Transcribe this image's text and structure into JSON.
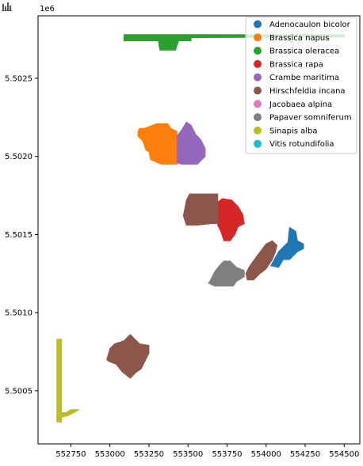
{
  "toolbar": {
    "menu_icon": "bar-chart-icon"
  },
  "chart_data": {
    "type": "scatter",
    "title": "",
    "xlabel": "",
    "ylabel": "",
    "offset_label": "1e6",
    "xlim": [
      552540,
      554600
    ],
    "ylim": [
      5500160,
      5502900
    ],
    "x_ticks": [
      552750,
      553000,
      553250,
      553500,
      553750,
      554000,
      554250,
      554500
    ],
    "y_ticks": [
      5500500,
      5501000,
      5501500,
      5502000,
      5502500
    ],
    "x_tick_labels": [
      "552750",
      "553000",
      "553250",
      "553500",
      "553750",
      "554000",
      "554250",
      "554500"
    ],
    "y_tick_labels": [
      "5.5005",
      "5.5010",
      "5.5015",
      "5.5020",
      "5.5025"
    ],
    "grid": false,
    "legend_position": "top-right",
    "series": [
      {
        "name": "Adenocaulon bicolor",
        "color": "#1f77b4",
        "polygon": [
          [
            554030,
            5501300
          ],
          [
            554080,
            5501390
          ],
          [
            554140,
            5501450
          ],
          [
            554150,
            5501545
          ],
          [
            554190,
            5501520
          ],
          [
            554200,
            5501460
          ],
          [
            554240,
            5501440
          ],
          [
            554240,
            5501410
          ],
          [
            554200,
            5501390
          ],
          [
            554150,
            5501340
          ],
          [
            554110,
            5501340
          ],
          [
            554080,
            5501290
          ]
        ]
      },
      {
        "name": "Brassica napus",
        "color": "#ff7f0e",
        "polygon": [
          [
            553180,
            5502130
          ],
          [
            553210,
            5502100
          ],
          [
            553230,
            5502040
          ],
          [
            553250,
            5502030
          ],
          [
            553260,
            5501980
          ],
          [
            553330,
            5501950
          ],
          [
            553430,
            5501950
          ],
          [
            553430,
            5502160
          ],
          [
            553390,
            5502180
          ],
          [
            553370,
            5502210
          ],
          [
            553300,
            5502210
          ],
          [
            553220,
            5502180
          ],
          [
            553190,
            5502180
          ],
          [
            553180,
            5502160
          ]
        ]
      },
      {
        "name": "Brassica oleracea",
        "color": "#2ca02c",
        "polygon": [
          [
            553090,
            5502780
          ],
          [
            554500,
            5502780
          ],
          [
            554500,
            5502765
          ],
          [
            553520,
            5502760
          ],
          [
            553520,
            5502740
          ],
          [
            553440,
            5502740
          ],
          [
            553420,
            5502680
          ],
          [
            553320,
            5502680
          ],
          [
            553310,
            5502740
          ],
          [
            553090,
            5502740
          ]
        ]
      },
      {
        "name": "Brassica rapa",
        "color": "#d62728",
        "polygon": [
          [
            553690,
            5501620
          ],
          [
            553680,
            5501700
          ],
          [
            553720,
            5501730
          ],
          [
            553780,
            5501720
          ],
          [
            553820,
            5501680
          ],
          [
            553850,
            5501630
          ],
          [
            553860,
            5501570
          ],
          [
            553820,
            5501550
          ],
          [
            553800,
            5501500
          ],
          [
            553770,
            5501460
          ],
          [
            553730,
            5501460
          ],
          [
            553710,
            5501520
          ],
          [
            553690,
            5501560
          ]
        ]
      },
      {
        "name": "Crambe maritima",
        "color": "#9467bd",
        "polygon": [
          [
            553430,
            5502130
          ],
          [
            553460,
            5502170
          ],
          [
            553490,
            5502220
          ],
          [
            553520,
            5502200
          ],
          [
            553550,
            5502140
          ],
          [
            553580,
            5502110
          ],
          [
            553610,
            5502050
          ],
          [
            553610,
            5502000
          ],
          [
            553590,
            5501980
          ],
          [
            553560,
            5501950
          ],
          [
            553500,
            5501950
          ],
          [
            553460,
            5501950
          ],
          [
            553430,
            5501960
          ]
        ]
      },
      {
        "name": "Hirschfeldia incana",
        "color": "#8c564b",
        "polygon": [
          [
            553480,
            5501670
          ],
          [
            553490,
            5501720
          ],
          [
            553510,
            5501760
          ],
          [
            553690,
            5501760
          ],
          [
            553690,
            5501570
          ],
          [
            553650,
            5501570
          ],
          [
            553560,
            5501560
          ],
          [
            553490,
            5501560
          ],
          [
            553470,
            5501620
          ]
        ]
      },
      {
        "name": "Jacobaea alpina",
        "color": "#e377c2",
        "polygon": []
      },
      {
        "name": "Papaver somniferum",
        "color": "#7f7f7f",
        "polygon": [
          [
            553640,
            5501200
          ],
          [
            553670,
            5501260
          ],
          [
            553700,
            5501300
          ],
          [
            553730,
            5501330
          ],
          [
            553770,
            5501330
          ],
          [
            553810,
            5501290
          ],
          [
            553860,
            5501270
          ],
          [
            553860,
            5501230
          ],
          [
            553810,
            5501200
          ],
          [
            553790,
            5501170
          ],
          [
            553670,
            5501170
          ],
          [
            553630,
            5501190
          ]
        ]
      },
      {
        "name": "Sinapis alba",
        "color": "#bcbd22",
        "polygon": [
          [
            552660,
            5500830
          ],
          [
            552690,
            5500830
          ],
          [
            552690,
            5500330
          ],
          [
            552730,
            5500340
          ],
          [
            552790,
            5500370
          ],
          [
            552800,
            5500380
          ],
          [
            552750,
            5500380
          ],
          [
            552720,
            5500360
          ],
          [
            552690,
            5500360
          ],
          [
            552690,
            5500300
          ],
          [
            552660,
            5500300
          ]
        ]
      },
      {
        "name": "Vitis rotundifolia",
        "color": "#17becf",
        "polygon": []
      }
    ],
    "extra_shapes": [
      {
        "series": "Hirschfeldia incana",
        "color": "#8c564b",
        "polygon": [
          [
            552980,
            5500700
          ],
          [
            553000,
            5500770
          ],
          [
            553030,
            5500800
          ],
          [
            553090,
            5500820
          ],
          [
            553130,
            5500860
          ],
          [
            553160,
            5500830
          ],
          [
            553190,
            5500800
          ],
          [
            553250,
            5500790
          ],
          [
            553250,
            5500740
          ],
          [
            553230,
            5500700
          ],
          [
            553200,
            5500640
          ],
          [
            553170,
            5500620
          ],
          [
            553130,
            5500580
          ],
          [
            553080,
            5500620
          ],
          [
            553040,
            5500670
          ],
          [
            552990,
            5500690
          ]
        ]
      },
      {
        "series": "Hirschfeldia incana",
        "color": "#8c564b",
        "polygon": [
          [
            553870,
            5501250
          ],
          [
            553890,
            5501290
          ],
          [
            553910,
            5501320
          ],
          [
            553940,
            5501360
          ],
          [
            553970,
            5501400
          ],
          [
            554000,
            5501440
          ],
          [
            554040,
            5501460
          ],
          [
            554070,
            5501430
          ],
          [
            554060,
            5501390
          ],
          [
            554040,
            5501340
          ],
          [
            554000,
            5501280
          ],
          [
            553960,
            5501250
          ],
          [
            553920,
            5501210
          ],
          [
            553880,
            5501210
          ]
        ]
      }
    ]
  }
}
